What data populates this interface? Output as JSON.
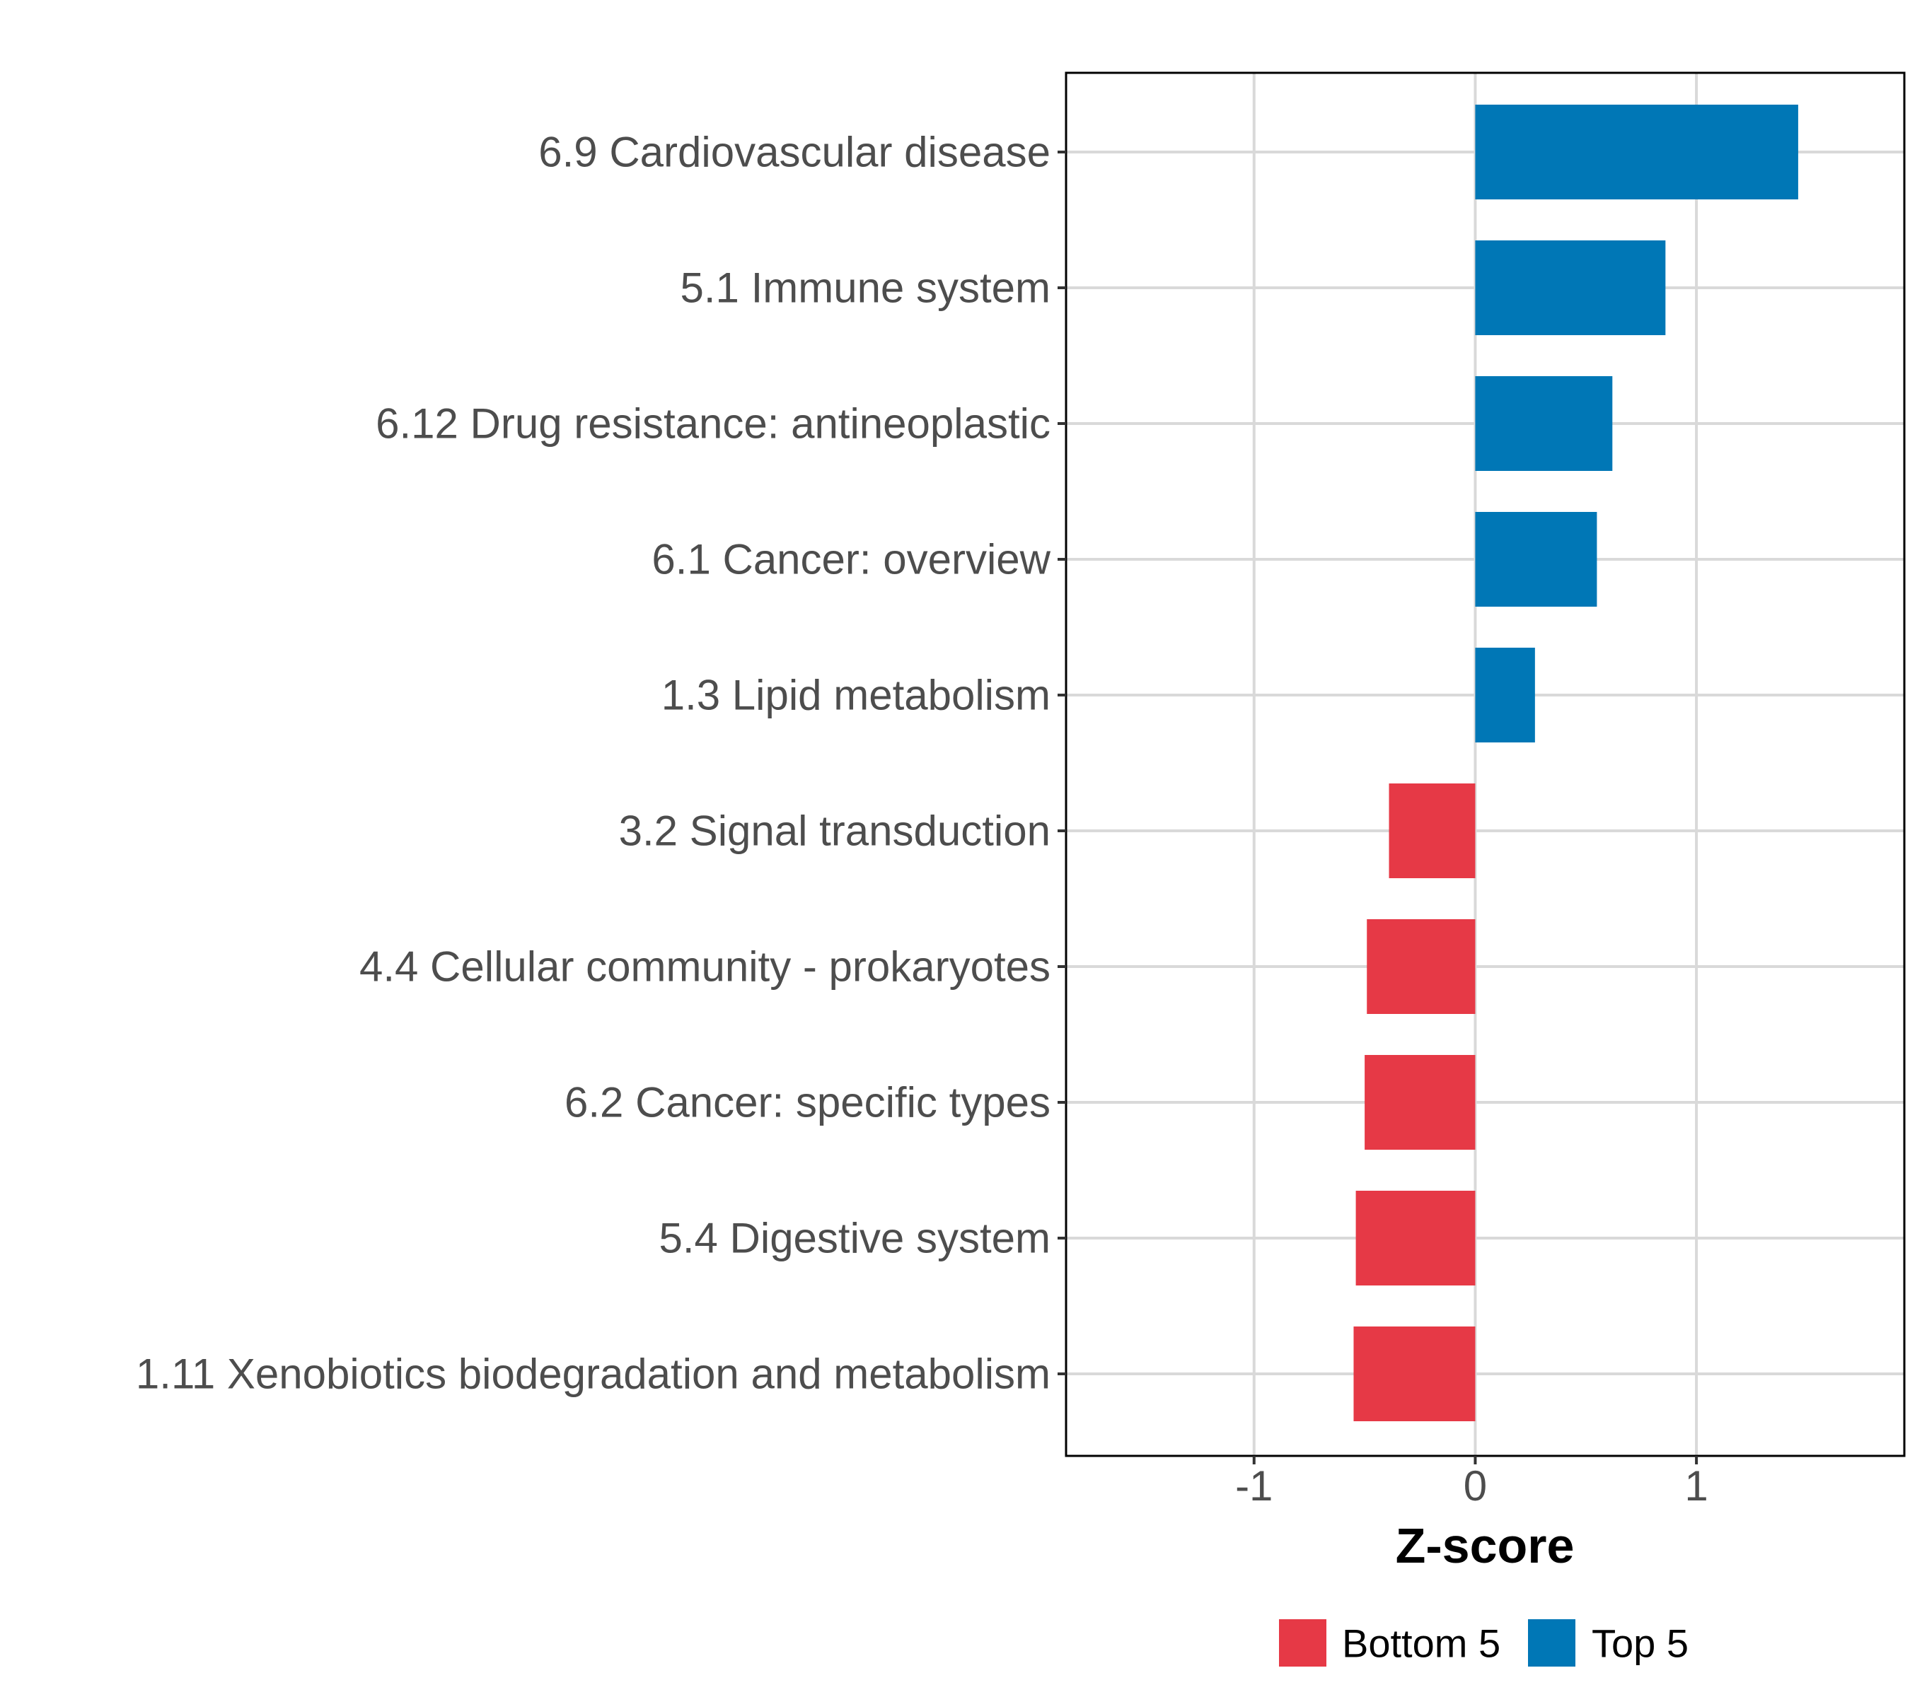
{
  "chart_data": {
    "type": "bar",
    "orientation": "horizontal",
    "title": "",
    "xlabel": "Z-score",
    "ylabel": "",
    "xlim": [
      -1.85,
      1.94
    ],
    "xticks": [
      -1,
      0,
      1
    ],
    "xtick_labels": [
      "-1",
      "0",
      "1"
    ],
    "grid": true,
    "legend_position": "bottom",
    "categories": [
      "6.9 Cardiovascular disease",
      "5.1 Immune system",
      "6.12 Drug resistance: antineoplastic",
      "6.1 Cancer: overview",
      "1.3 Lipid metabolism",
      "3.2 Signal transduction",
      "4.4 Cellular community - prokaryotes",
      "6.2 Cancer: specific types",
      "5.4 Digestive system",
      "1.11 Xenobiotics biodegradation and metabolism"
    ],
    "values": [
      1.46,
      0.86,
      0.62,
      0.55,
      0.27,
      -0.39,
      -0.49,
      -0.5,
      -0.54,
      -0.55
    ],
    "groups": [
      "Top 5",
      "Top 5",
      "Top 5",
      "Top 5",
      "Top 5",
      "Bottom 5",
      "Bottom 5",
      "Bottom 5",
      "Bottom 5",
      "Bottom 5"
    ],
    "legend": [
      {
        "name": "Bottom 5",
        "color": "#e63946"
      },
      {
        "name": "Top 5",
        "color": "#0077b6"
      }
    ],
    "colors": {
      "Top 5": "#0077b6",
      "Bottom 5": "#e63946",
      "grid": "#d9d9d9",
      "border": "#000000"
    }
  }
}
